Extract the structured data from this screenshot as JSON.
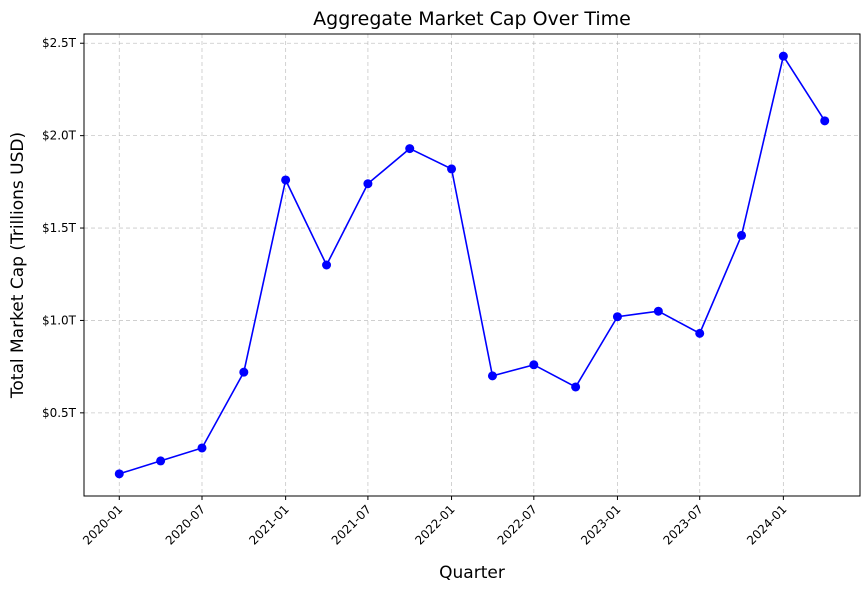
{
  "chart_data": {
    "type": "line",
    "title": "Aggregate Market Cap Over Time",
    "xlabel": "Quarter",
    "ylabel": "Total Market Cap (Trillions USD)",
    "x": [
      "2020-01-01",
      "2020-04-01",
      "2020-07-01",
      "2020-10-01",
      "2021-01-01",
      "2021-04-01",
      "2021-07-01",
      "2021-10-01",
      "2022-01-01",
      "2022-04-01",
      "2022-07-01",
      "2022-10-01",
      "2023-01-01",
      "2023-04-01",
      "2023-07-01",
      "2023-10-01",
      "2024-01-01",
      "2024-04-01"
    ],
    "series": [
      {
        "color": "#0000ff",
        "values": [
          0.17,
          0.24,
          0.31,
          0.72,
          1.76,
          1.3,
          1.74,
          1.93,
          1.82,
          0.7,
          0.76,
          0.64,
          1.02,
          1.05,
          0.93,
          1.46,
          2.43,
          2.08
        ]
      }
    ],
    "xticks": [
      "2020-01",
      "2020-07",
      "2021-01",
      "2021-07",
      "2022-01",
      "2022-07",
      "2023-01",
      "2023-07",
      "2024-01"
    ],
    "yticks": [
      0.5,
      1.0,
      1.5,
      2.0,
      2.5
    ],
    "ytick_labels": [
      "$0.5T",
      "$1.0T",
      "$1.5T",
      "$2.0T",
      "$2.5T"
    ],
    "ylim": [
      0.05,
      2.55
    ],
    "grid": true,
    "grid_style": "dashed",
    "x_tick_rotation": 45
  }
}
